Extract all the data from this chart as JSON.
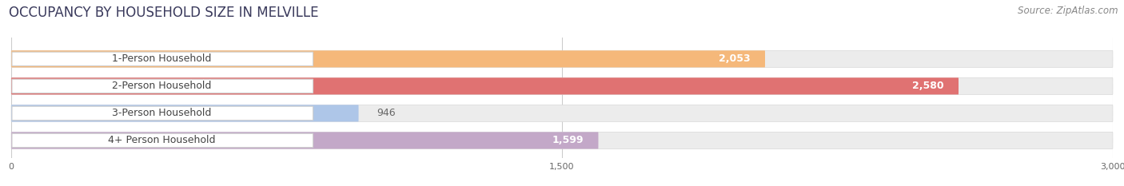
{
  "title": "OCCUPANCY BY HOUSEHOLD SIZE IN MELVILLE",
  "source": "Source: ZipAtlas.com",
  "categories": [
    "1-Person Household",
    "2-Person Household",
    "3-Person Household",
    "4+ Person Household"
  ],
  "values": [
    2053,
    2580,
    946,
    1599
  ],
  "bar_colors": [
    "#f5b87a",
    "#e07272",
    "#aec6e8",
    "#c3a8c8"
  ],
  "label_bg_colors": [
    "#f0f0f0",
    "#f0f0f0",
    "#f0f0f0",
    "#f0f0f0"
  ],
  "xlim": [
    0,
    3000
  ],
  "xticks": [
    0,
    1500,
    3000
  ],
  "background_color": "#ffffff",
  "bar_bg_color": "#ececec",
  "title_fontsize": 12,
  "label_fontsize": 9,
  "value_fontsize": 9,
  "source_fontsize": 8.5
}
